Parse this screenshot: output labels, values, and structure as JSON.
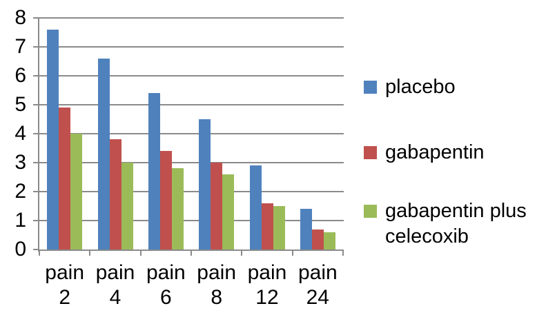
{
  "chart_data": {
    "type": "bar",
    "title": "",
    "xlabel": "",
    "ylabel": "",
    "categories": [
      "pain 2",
      "pain 4",
      "pain 6",
      "pain 8",
      "pain 12",
      "pain 24"
    ],
    "series": [
      {
        "name": "placebo",
        "color": "#4F81BD",
        "values": [
          7.6,
          6.6,
          5.4,
          4.5,
          2.9,
          1.4
        ]
      },
      {
        "name": "gabapentin",
        "color": "#C0504D",
        "values": [
          4.9,
          3.8,
          3.4,
          3.0,
          1.6,
          0.7
        ]
      },
      {
        "name": "gabapentin plus celecoxib",
        "color": "#9BBB59",
        "values": [
          4.0,
          3.0,
          2.8,
          2.6,
          1.5,
          0.6
        ]
      }
    ],
    "ylim": [
      0,
      8
    ],
    "yticks": [
      0,
      1,
      2,
      3,
      4,
      5,
      6,
      7,
      8
    ],
    "grid": true,
    "legend_position": "right",
    "colors": {
      "axis": "#8a8a8a",
      "gridline": "#8a8a8a",
      "text": "#000000",
      "background": "#ffffff"
    }
  }
}
